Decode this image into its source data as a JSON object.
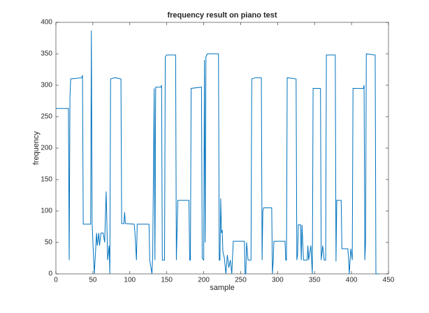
{
  "chart_data": {
    "type": "line",
    "title": "frequency result on piano test",
    "xlabel": "sample",
    "ylabel": "frequency",
    "x": [
      0,
      17,
      18,
      19,
      20,
      28,
      35,
      36,
      37,
      47,
      48,
      49,
      51,
      52,
      55,
      56,
      58,
      59,
      61,
      64,
      66,
      68,
      69,
      70,
      72,
      73,
      74,
      80,
      88,
      89,
      92,
      93,
      94,
      106,
      107,
      109,
      110,
      126,
      127,
      130,
      131,
      133,
      134,
      135,
      142,
      143,
      144,
      147,
      148,
      150,
      162,
      163,
      165,
      180,
      181,
      182,
      183,
      197,
      198,
      200,
      201,
      202,
      203,
      205,
      220,
      221,
      222,
      223,
      224,
      225,
      226,
      228,
      230,
      232,
      234,
      236,
      238,
      240,
      255,
      256,
      257,
      258,
      260,
      264,
      265,
      270,
      278,
      279,
      280,
      281,
      292,
      293,
      294,
      295,
      310,
      311,
      312,
      313,
      325,
      326,
      327,
      328,
      331,
      332,
      333,
      335,
      340,
      341,
      342,
      345,
      347,
      348,
      358,
      359,
      361,
      363,
      365,
      366,
      378,
      379,
      380,
      386,
      387,
      395,
      396,
      397,
      399,
      401,
      402,
      416,
      417,
      418,
      419,
      420,
      432,
      433,
      437
    ],
    "series": [
      {
        "color": "#0072bd",
        "values": [
          263,
          263,
          22,
          280,
          310,
          311,
          312,
          316,
          79,
          79,
          387,
          80,
          25,
          0,
          65,
          45,
          65,
          45,
          65,
          65,
          50,
          131,
          80,
          22,
          45,
          0,
          310,
          312,
          310,
          80,
          80,
          98,
          80,
          79,
          65,
          22,
          79,
          79,
          22,
          0,
          30,
          295,
          22,
          297,
          297,
          300,
          22,
          22,
          345,
          348,
          348,
          22,
          117,
          117,
          22,
          22,
          295,
          297,
          25,
          22,
          340,
          50,
          345,
          350,
          350,
          22,
          22,
          120,
          65,
          70,
          35,
          25,
          0,
          30,
          10,
          22,
          0,
          52,
          52,
          0,
          0,
          50,
          22,
          22,
          310,
          312,
          312,
          22,
          100,
          105,
          105,
          0,
          20,
          52,
          52,
          22,
          22,
          312,
          310,
          22,
          30,
          78,
          78,
          22,
          78,
          22,
          22,
          45,
          22,
          45,
          0,
          295,
          295,
          22,
          45,
          22,
          22,
          348,
          348,
          20,
          117,
          117,
          40,
          40,
          25,
          0,
          40,
          22,
          295,
          295,
          300,
          22,
          50,
          350,
          348,
          0,
          0
        ]
      }
    ],
    "xlim": [
      0,
      450
    ],
    "xticks": [
      0,
      50,
      100,
      150,
      200,
      250,
      300,
      350,
      400,
      450
    ],
    "ylim": [
      0,
      400
    ],
    "yticks": [
      0,
      50,
      100,
      150,
      200,
      250,
      300,
      350,
      400
    ]
  }
}
